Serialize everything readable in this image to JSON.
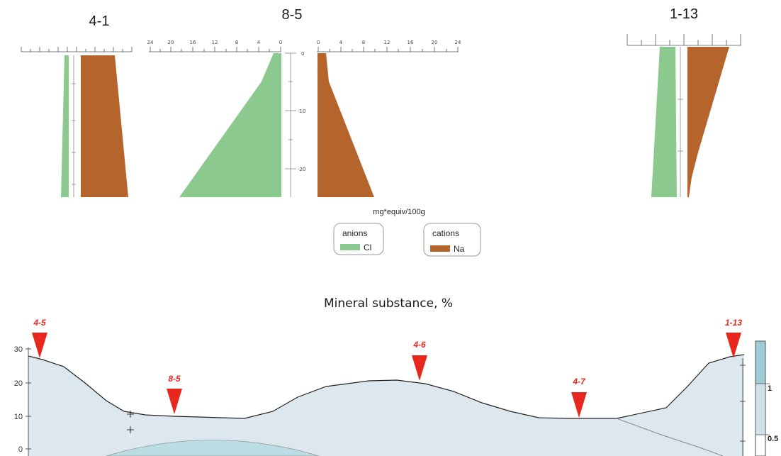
{
  "colors": {
    "anion": "#8cc98f",
    "cation": "#b5642b",
    "marker": "#e8281e",
    "section_fill": "#dde8ee",
    "section_lens": "#b9dde3"
  },
  "diagrams": {
    "d41": {
      "title": "4-1"
    },
    "d85": {
      "title": "8-5",
      "top_ticks_left": [
        "24",
        "20",
        "16",
        "12",
        "8",
        "4",
        "0"
      ],
      "top_ticks_right": [
        "0",
        "4",
        "8",
        "12",
        "16",
        "20",
        "24"
      ],
      "depth_ticks": [
        "0",
        "-10",
        "-20"
      ]
    },
    "d113": {
      "title": "1-13"
    }
  },
  "legend": {
    "unit": "mg*equiv/100g",
    "anions": {
      "label": "anions",
      "item": "Cl"
    },
    "cations": {
      "label": "cations",
      "item": "Na"
    }
  },
  "section": {
    "title": "Mineral substance, %",
    "y_ticks": [
      "30",
      "20",
      "10",
      "0"
    ],
    "wells": [
      "4-5",
      "8-5",
      "4-6",
      "4-7",
      "1-13"
    ],
    "scale_labels": [
      "1",
      "0.5"
    ]
  }
}
